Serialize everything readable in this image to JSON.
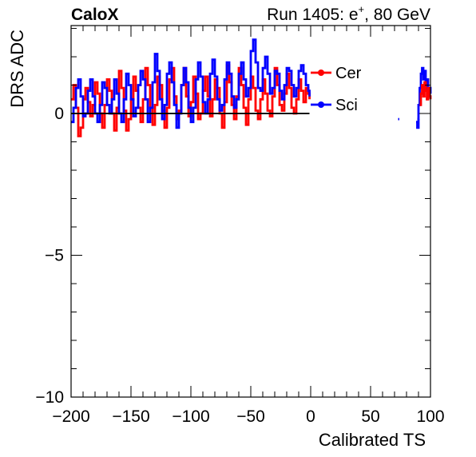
{
  "chart_data": {
    "type": "line",
    "title_left": "CaloX",
    "title_right_prefix": "Run 1405: e",
    "title_right_sup": "+",
    "title_right_suffix": ", 80 GeV",
    "xlabel": "Calibrated TS",
    "ylabel": "DRS ADC",
    "xlim": [
      -200,
      100
    ],
    "ylim": [
      -10,
      3.1
    ],
    "xticks": [
      -200,
      -150,
      -100,
      -50,
      0,
      50,
      100
    ],
    "xtick_labels": [
      "−200",
      "−150",
      "−100",
      "−50",
      "0",
      "50",
      "100"
    ],
    "yticks": [
      -10,
      -5,
      0
    ],
    "ytick_labels": [
      "−10",
      "−5",
      "0"
    ],
    "hline_y": 0,
    "hline_xrange": [
      -200,
      -1
    ],
    "grid": false,
    "legend_position": "top-right",
    "series": [
      {
        "name": "Cer",
        "color": "#ff0000",
        "x": [
          -200,
          -198,
          -196,
          -194,
          -192,
          -190,
          -188,
          -186,
          -184,
          -182,
          -180,
          -178,
          -176,
          -174,
          -172,
          -170,
          -168,
          -166,
          -164,
          -162,
          -160,
          -158,
          -156,
          -154,
          -152,
          -150,
          -148,
          -146,
          -144,
          -142,
          -140,
          -138,
          -136,
          -134,
          -132,
          -130,
          -128,
          -126,
          -124,
          -122,
          -120,
          -118,
          -116,
          -114,
          -112,
          -110,
          -108,
          -106,
          -104,
          -102,
          -100,
          -98,
          -96,
          -94,
          -92,
          -90,
          -88,
          -86,
          -84,
          -82,
          -80,
          -78,
          -76,
          -74,
          -72,
          -70,
          -68,
          -66,
          -64,
          -62,
          -60,
          -58,
          -56,
          -54,
          -52,
          -50,
          -48,
          -46,
          -44,
          -42,
          -40,
          -38,
          -36,
          -34,
          -32,
          -30,
          -28,
          -26,
          -24,
          -22,
          -20,
          -18,
          -16,
          -14,
          -12,
          -10,
          -8,
          -6,
          -4,
          -2,
          -1
        ],
        "y": [
          0.5,
          1.0,
          0.2,
          -0.8,
          -0.5,
          0.5,
          0.9,
          0.4,
          -0.1,
          0.3,
          1.1,
          0.7,
          0.0,
          -0.5,
          0.3,
          1.2,
          0.8,
          0.0,
          -0.6,
          0.2,
          1.5,
          0.9,
          0.1,
          -0.6,
          -0.2,
          0.5,
          1.3,
          0.8,
          0.2,
          -0.3,
          0.5,
          1.6,
          1.0,
          0.2,
          -0.4,
          0.3,
          1.3,
          1.0,
          0.1,
          -0.5,
          0.2,
          1.2,
          1.6,
          0.6,
          -0.2,
          0.1,
          1.0,
          1.6,
          0.6,
          -0.1,
          0.4,
          1.3,
          0.7,
          -0.2,
          0.0,
          0.8,
          1.3,
          0.6,
          -0.1,
          0.5,
          1.2,
          0.9,
          0.0,
          -0.5,
          0.4,
          1.7,
          1.1,
          0.3,
          -0.2,
          0.6,
          1.6,
          1.0,
          0.2,
          -0.4,
          0.5,
          1.3,
          0.9,
          0.1,
          -0.2,
          0.5,
          1.2,
          0.7,
          0.1,
          -0.1,
          0.6,
          1.6,
          1.0,
          0.3,
          0.1,
          0.7,
          1.4,
          0.9,
          0.2,
          0.0,
          0.5,
          1.2,
          0.8,
          0.4,
          0.9,
          0.7,
          0.5
        ]
      },
      {
        "name": "Sci",
        "color": "#0000ff",
        "x": [
          -200,
          -198,
          -196,
          -194,
          -192,
          -190,
          -188,
          -186,
          -184,
          -182,
          -180,
          -178,
          -176,
          -174,
          -172,
          -170,
          -168,
          -166,
          -164,
          -162,
          -160,
          -158,
          -156,
          -154,
          -152,
          -150,
          -148,
          -146,
          -144,
          -142,
          -140,
          -138,
          -136,
          -134,
          -132,
          -130,
          -128,
          -126,
          -124,
          -122,
          -120,
          -118,
          -116,
          -114,
          -112,
          -110,
          -108,
          -106,
          -104,
          -102,
          -100,
          -98,
          -96,
          -94,
          -92,
          -90,
          -88,
          -86,
          -84,
          -82,
          -80,
          -78,
          -76,
          -74,
          -72,
          -70,
          -68,
          -66,
          -64,
          -62,
          -60,
          -58,
          -56,
          -54,
          -52,
          -50,
          -48,
          -46,
          -44,
          -42,
          -40,
          -38,
          -36,
          -34,
          -32,
          -30,
          -28,
          -26,
          -24,
          -22,
          -20,
          -18,
          -16,
          -14,
          -12,
          -10,
          -8,
          -6,
          -4,
          -2,
          -1
        ],
        "y": [
          -0.3,
          0.2,
          0.9,
          1.2,
          0.6,
          -0.1,
          0.0,
          0.8,
          1.2,
          0.6,
          0.0,
          -0.3,
          0.3,
          1.1,
          0.9,
          0.3,
          0.0,
          0.5,
          1.2,
          0.7,
          0.0,
          -0.3,
          0.5,
          1.4,
          1.0,
          0.5,
          -0.1,
          0.2,
          1.0,
          1.5,
          1.2,
          0.5,
          -0.3,
          0.2,
          1.1,
          2.1,
          1.5,
          0.5,
          -0.2,
          0.3,
          1.4,
          1.8,
          1.1,
          0.3,
          -0.5,
          0.0,
          1.0,
          1.6,
          1.1,
          0.2,
          -0.3,
          0.2,
          1.2,
          1.8,
          1.3,
          0.4,
          0.0,
          0.5,
          1.4,
          1.9,
          1.3,
          0.5,
          0.1,
          0.3,
          1.2,
          1.8,
          1.4,
          0.6,
          0.2,
          0.5,
          1.4,
          1.8,
          1.2,
          0.6,
          0.9,
          2.2,
          2.6,
          1.8,
          0.9,
          0.8,
          1.6,
          2.0,
          1.4,
          0.7,
          0.9,
          1.5,
          1.4,
          0.8,
          0.5,
          1.0,
          1.6,
          1.5,
          1.0,
          0.6,
          0.9,
          1.5,
          1.7,
          1.4,
          1.0,
          0.8,
          0.6
        ]
      }
    ],
    "extra_segments": [
      {
        "series": "Sci",
        "x": [
          73,
          74
        ],
        "y": [
          -0.2,
          -0.2
        ]
      },
      {
        "series": "Sci",
        "x": [
          88,
          89,
          90
        ],
        "y": [
          -0.3,
          -0.5,
          -0.2
        ]
      },
      {
        "series": "Sci",
        "x": [
          89,
          90,
          91,
          92,
          93,
          94,
          95,
          96,
          97,
          98,
          99,
          100
        ],
        "y": [
          -0.2,
          0.3,
          0.9,
          1.4,
          1.6,
          1.2,
          1.5,
          0.8,
          1.2,
          0.6,
          0.9,
          0.7
        ]
      },
      {
        "series": "Cer",
        "x": [
          91,
          92,
          93,
          94,
          95,
          96,
          97,
          98,
          99,
          100
        ],
        "y": [
          0.3,
          0.7,
          1.0,
          0.6,
          1.1,
          0.8,
          0.5,
          0.9,
          0.6,
          0.5
        ]
      }
    ]
  }
}
